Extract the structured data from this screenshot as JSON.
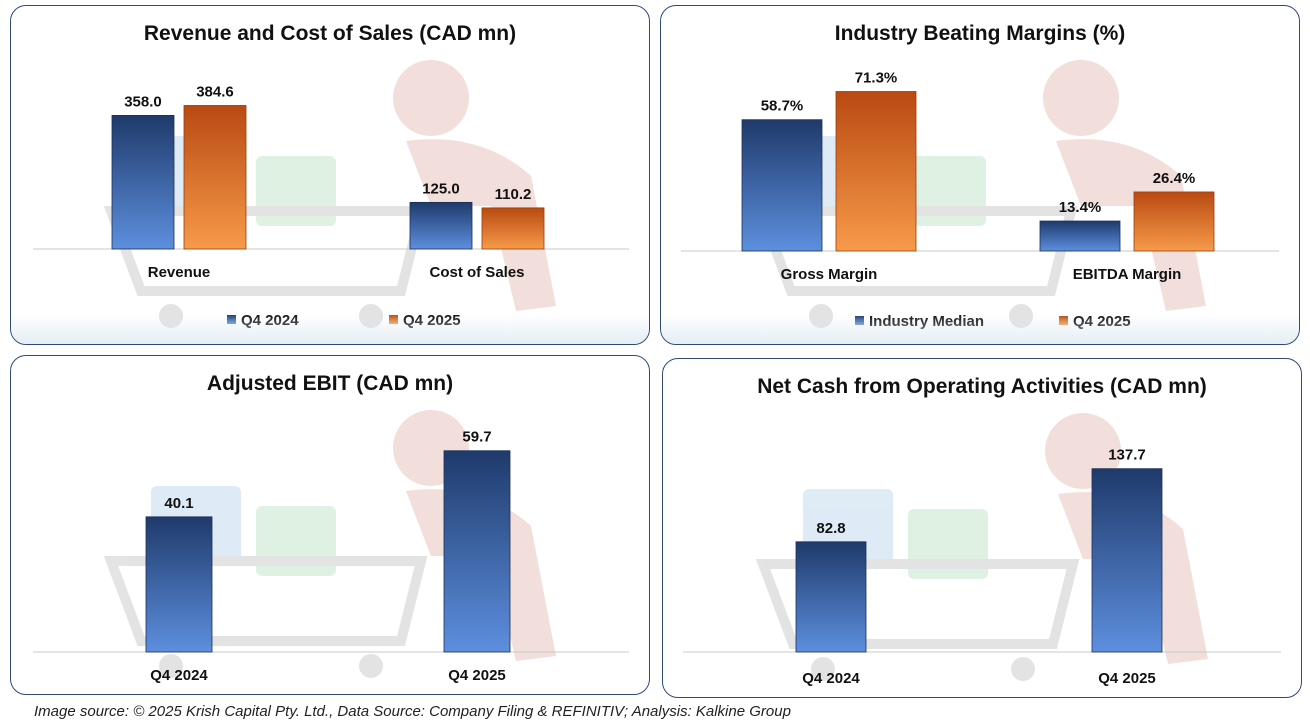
{
  "colors": {
    "blue_top": "#1f3a6b",
    "blue_bottom": "#5d8fde",
    "orange_top": "#b94a12",
    "orange_bottom": "#f79a4a",
    "panel_border": "#2f4a78"
  },
  "chart_data": [
    {
      "type": "bar",
      "title": "Revenue and Cost of Sales (CAD mn)",
      "categories": [
        "Revenue",
        "Cost of Sales"
      ],
      "series": [
        {
          "name": "Q4 2024",
          "values": [
            358.0,
            125.0
          ],
          "color": "blue"
        },
        {
          "name": "Q4 2025",
          "values": [
            384.6,
            110.2
          ],
          "color": "orange"
        }
      ],
      "data_labels": [
        [
          "358.0",
          "125.0"
        ],
        [
          "384.6",
          "110.2"
        ]
      ],
      "ylim": [
        0,
        410
      ],
      "legend": "bottom",
      "grid": false
    },
    {
      "type": "bar",
      "title": "Industry Beating Margins (%)",
      "categories": [
        "Gross Margin",
        "EBITDA Margin"
      ],
      "series": [
        {
          "name": "Industry Median",
          "values": [
            58.7,
            13.4
          ],
          "color": "blue"
        },
        {
          "name": "Q4 2025",
          "values": [
            71.3,
            26.4
          ],
          "color": "orange"
        }
      ],
      "data_labels": [
        [
          "58.7%",
          "13.4%"
        ],
        [
          "71.3%",
          "26.4%"
        ]
      ],
      "ylim": [
        0,
        76
      ],
      "legend": "bottom",
      "grid": false
    },
    {
      "type": "bar",
      "title": "Adjusted EBIT (CAD mn)",
      "categories": [
        "Q4 2024",
        "Q4 2025"
      ],
      "series": [
        {
          "values": [
            40.1,
            59.7
          ],
          "color": "blue"
        }
      ],
      "data_labels": [
        [
          "40.1",
          "59.7"
        ]
      ],
      "ylim": [
        0,
        70
      ],
      "legend": "none",
      "grid": false
    },
    {
      "type": "bar",
      "title": "Net Cash from Operating Activities (CAD mn)",
      "categories": [
        "Q4 2024",
        "Q4 2025"
      ],
      "series": [
        {
          "values": [
            82.8,
            137.7
          ],
          "color": "blue"
        }
      ],
      "data_labels": [
        [
          "82.8",
          "137.7"
        ]
      ],
      "ylim": [
        0,
        160
      ],
      "legend": "none",
      "grid": false
    }
  ],
  "footer": {
    "source": "Image source: © 2025 Krish Capital Pty. Ltd., Data Source: Company Filing & REFINITIV; Analysis: Kalkine Group"
  }
}
